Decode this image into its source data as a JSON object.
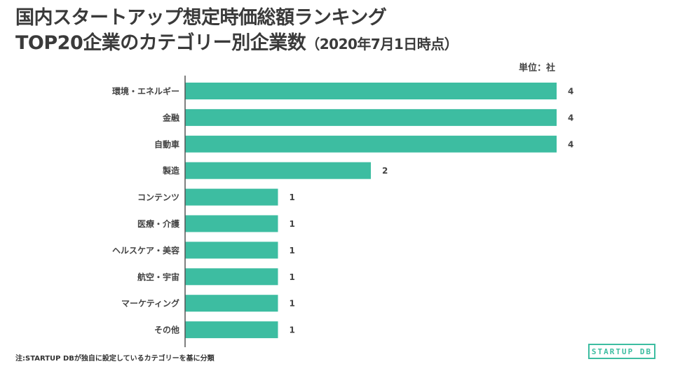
{
  "header": {
    "title_line1": "国内スタートアップ想定時価総額ランキング",
    "title_line2_main": "TOP20企業のカテゴリー別企業数",
    "title_line2_sub": "（2020年7月1日時点）"
  },
  "unit_label": "単位：社",
  "footnote": "注:STARTUP DBが独自に設定しているカテゴリーを基に分類",
  "logo_text": "STARTUP DB",
  "colors": {
    "bar": "#3dbda1",
    "axis": "#555555",
    "title": "#3a3a3a"
  },
  "chart_data": {
    "type": "bar",
    "orientation": "horizontal",
    "categories": [
      "環境・エネルギー",
      "金融",
      "自動車",
      "製造",
      "コンテンツ",
      "医療・介護",
      "ヘルスケア・美容",
      "航空・宇宙",
      "マーケティング",
      "その他"
    ],
    "values": [
      4,
      4,
      4,
      2,
      1,
      1,
      1,
      1,
      1,
      1
    ],
    "value_labels": [
      "4",
      "4",
      "4",
      "2",
      "1",
      "1",
      "1",
      "1",
      "1",
      "1"
    ],
    "xlim": [
      0,
      4
    ],
    "grid": false,
    "legend": "none"
  }
}
